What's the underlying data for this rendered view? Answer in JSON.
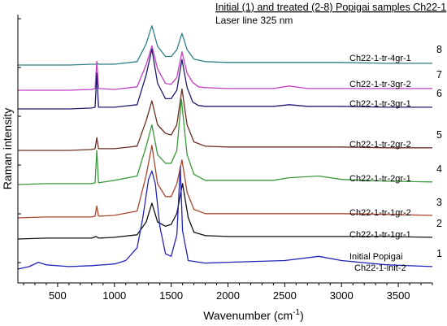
{
  "chart_data": {
    "type": "line",
    "title": "Initial (1) and treated (2-8) Popigai samples Ch22-1",
    "subtitle": "Laser line 325 nm",
    "xlabel": "Wavenumber (cm",
    "xlabel_sup": "-1",
    "xlabel_end": ")",
    "ylabel": "Raman intensity",
    "xlim": [
      150,
      3800
    ],
    "xticks": [
      "500",
      "1000",
      "1500",
      "2000",
      "2500",
      "3000",
      "3500"
    ],
    "xtick_values": [
      500,
      1000,
      1500,
      2000,
      2500,
      3000,
      3500
    ],
    "y_axis_ticks": "unlabeled",
    "legend": "labels placed at the right of each curve",
    "series": [
      {
        "number": "8",
        "name": "Ch22-1-tr-4gr-1",
        "color": "#2e7f87",
        "x": [
          150,
          400,
          600,
          800,
          840,
          850,
          860,
          1000,
          1200,
          1280,
          1330,
          1380,
          1450,
          1500,
          1550,
          1595,
          1640,
          1700,
          1800,
          2000,
          2400,
          2700,
          3000,
          3400,
          3800
        ],
        "y": [
          0.0,
          0.0,
          0.0,
          0.01,
          0.01,
          0.02,
          0.01,
          0.01,
          0.04,
          0.25,
          0.46,
          0.22,
          0.1,
          0.1,
          0.18,
          0.37,
          0.18,
          0.07,
          0.04,
          0.03,
          0.03,
          0.03,
          0.03,
          0.02,
          0.02
        ]
      },
      {
        "number": "7",
        "name": "Ch22-1-tr-3gr-2",
        "color": "#c53fc5",
        "x": [
          150,
          400,
          600,
          800,
          830,
          845,
          860,
          1000,
          1200,
          1280,
          1330,
          1380,
          1450,
          1500,
          1550,
          1595,
          1640,
          1690,
          1740,
          1800,
          2000,
          2400,
          2540,
          2700,
          3000,
          3400,
          3800
        ],
        "y": [
          0.0,
          0.0,
          0.0,
          0.01,
          0.02,
          0.34,
          0.02,
          0.01,
          0.04,
          0.3,
          0.52,
          0.25,
          0.08,
          0.07,
          0.15,
          0.45,
          0.2,
          0.09,
          0.04,
          0.03,
          0.02,
          0.02,
          0.05,
          0.02,
          0.02,
          0.02,
          0.02
        ]
      },
      {
        "number": "6",
        "name": "Ch22-1-tr-3gr-1",
        "color": "#1c1c70",
        "x": [
          150,
          400,
          600,
          800,
          830,
          845,
          860,
          1000,
          1200,
          1280,
          1330,
          1380,
          1450,
          1500,
          1550,
          1595,
          1640,
          1690,
          1740,
          1800,
          2000,
          2400,
          2540,
          2700,
          3000,
          3400,
          3800
        ],
        "y": [
          0.0,
          0.0,
          0.0,
          0.01,
          0.02,
          0.42,
          0.02,
          0.02,
          0.05,
          0.4,
          0.7,
          0.3,
          0.12,
          0.12,
          0.22,
          0.58,
          0.25,
          0.08,
          0.04,
          0.03,
          0.03,
          0.03,
          0.05,
          0.03,
          0.03,
          0.02,
          0.02
        ]
      },
      {
        "number": "5",
        "name": "Ch22-1-tr-2gr-2",
        "color": "#6b2f24",
        "x": [
          150,
          400,
          600,
          800,
          830,
          845,
          860,
          1000,
          1200,
          1280,
          1330,
          1380,
          1450,
          1500,
          1550,
          1595,
          1640,
          1700,
          1800,
          2000,
          2400,
          2700,
          3000,
          3400,
          3800
        ],
        "y": [
          0.0,
          0.0,
          0.0,
          0.01,
          0.02,
          0.15,
          0.02,
          0.02,
          0.05,
          0.35,
          0.58,
          0.3,
          0.2,
          0.18,
          0.3,
          0.72,
          0.3,
          0.1,
          0.05,
          0.04,
          0.04,
          0.04,
          0.04,
          0.03,
          0.03
        ]
      },
      {
        "number": "4",
        "name": "Ch22-1-tr-2gr-1",
        "color": "#3b9a3b",
        "x": [
          150,
          400,
          600,
          800,
          830,
          845,
          860,
          1000,
          1200,
          1280,
          1330,
          1380,
          1450,
          1500,
          1550,
          1590,
          1640,
          1700,
          1800,
          2000,
          2400,
          2540,
          2800,
          3000,
          3400,
          3800
        ],
        "y": [
          0.0,
          0.01,
          0.01,
          0.01,
          0.02,
          0.4,
          0.02,
          0.05,
          0.1,
          0.45,
          0.7,
          0.35,
          0.25,
          0.25,
          0.4,
          1.0,
          0.35,
          0.12,
          0.05,
          0.05,
          0.05,
          0.08,
          0.1,
          0.06,
          0.04,
          0.03
        ]
      },
      {
        "number": "3",
        "name": "Ch22-1-tr-1gr-2",
        "color": "#a8462e",
        "x": [
          150,
          400,
          600,
          800,
          830,
          845,
          860,
          1000,
          1200,
          1280,
          1330,
          1380,
          1450,
          1500,
          1550,
          1595,
          1640,
          1700,
          1800,
          2000,
          2400,
          2700,
          3000,
          3400,
          3800
        ],
        "y": [
          0.0,
          0.01,
          0.01,
          0.01,
          0.02,
          0.14,
          0.02,
          0.03,
          0.08,
          0.5,
          0.85,
          0.4,
          0.25,
          0.25,
          0.4,
          0.68,
          0.3,
          0.1,
          0.05,
          0.05,
          0.05,
          0.05,
          0.05,
          0.04,
          0.03
        ]
      },
      {
        "number": "2",
        "name": "Ch22-1-tr-1gr-1",
        "color": "#111111",
        "x": [
          150,
          400,
          600,
          800,
          840,
          860,
          1000,
          1200,
          1280,
          1330,
          1380,
          1450,
          1500,
          1550,
          1600,
          1650,
          1700,
          1800,
          2000,
          2400,
          2700,
          3000,
          3400,
          3800
        ],
        "y": [
          0.0,
          0.01,
          0.01,
          0.01,
          0.03,
          0.01,
          0.02,
          0.05,
          0.2,
          0.42,
          0.2,
          0.15,
          0.17,
          0.3,
          0.65,
          0.25,
          0.08,
          0.04,
          0.03,
          0.03,
          0.03,
          0.03,
          0.03,
          0.02
        ]
      },
      {
        "number": "1",
        "name": "Initial Popigai",
        "name2": "Ch22-1-init-2",
        "color": "#2323b8",
        "x": [
          150,
          250,
          330,
          400,
          600,
          800,
          1000,
          1100,
          1200,
          1250,
          1300,
          1330,
          1360,
          1400,
          1450,
          1500,
          1550,
          1580,
          1600,
          1650,
          1800,
          2000,
          2500,
          2800,
          3000,
          3400,
          3800
        ],
        "y": [
          0.0,
          0.03,
          0.08,
          0.05,
          0.03,
          0.04,
          0.06,
          0.1,
          0.25,
          0.6,
          1.05,
          1.15,
          1.0,
          0.5,
          0.18,
          0.15,
          0.4,
          1.2,
          0.45,
          0.1,
          0.07,
          0.08,
          0.1,
          0.15,
          0.1,
          0.05,
          0.03
        ]
      }
    ]
  }
}
